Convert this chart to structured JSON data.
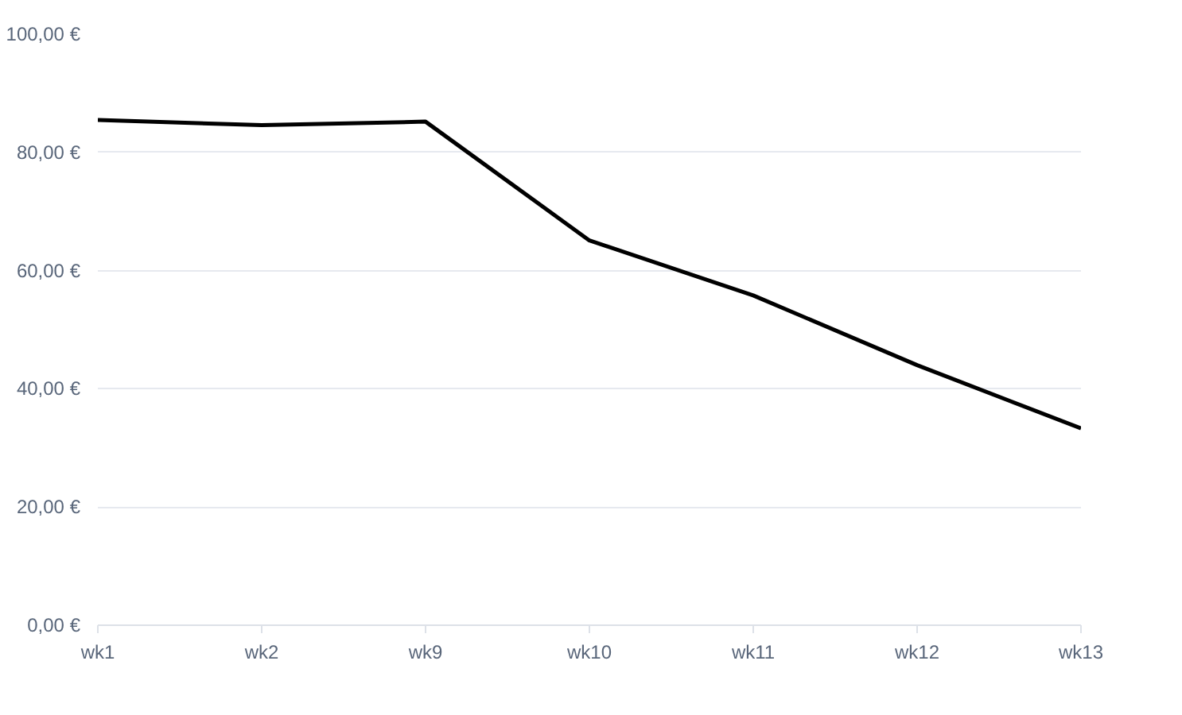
{
  "chart_data": {
    "type": "line",
    "categories": [
      "wk1",
      "wk2",
      "wk9",
      "wk10",
      "wk11",
      "wk12",
      "wk13"
    ],
    "series": [
      {
        "color": "#000000",
        "values": [
          85.5,
          84.6,
          85.2,
          65.1,
          55.8,
          44.0,
          33.3
        ]
      }
    ],
    "ylim": [
      0,
      100
    ],
    "yticks": [
      {
        "value": 0,
        "label": "0,00 €"
      },
      {
        "value": 20,
        "label": "20,00 €"
      },
      {
        "value": 40,
        "label": "40,00 €"
      },
      {
        "value": 60,
        "label": "60,00 €"
      },
      {
        "value": 80,
        "label": "80,00 €"
      },
      {
        "value": 100,
        "label": "100,00 €"
      }
    ],
    "grid": "y",
    "marker": "none",
    "line_style": "solid"
  }
}
